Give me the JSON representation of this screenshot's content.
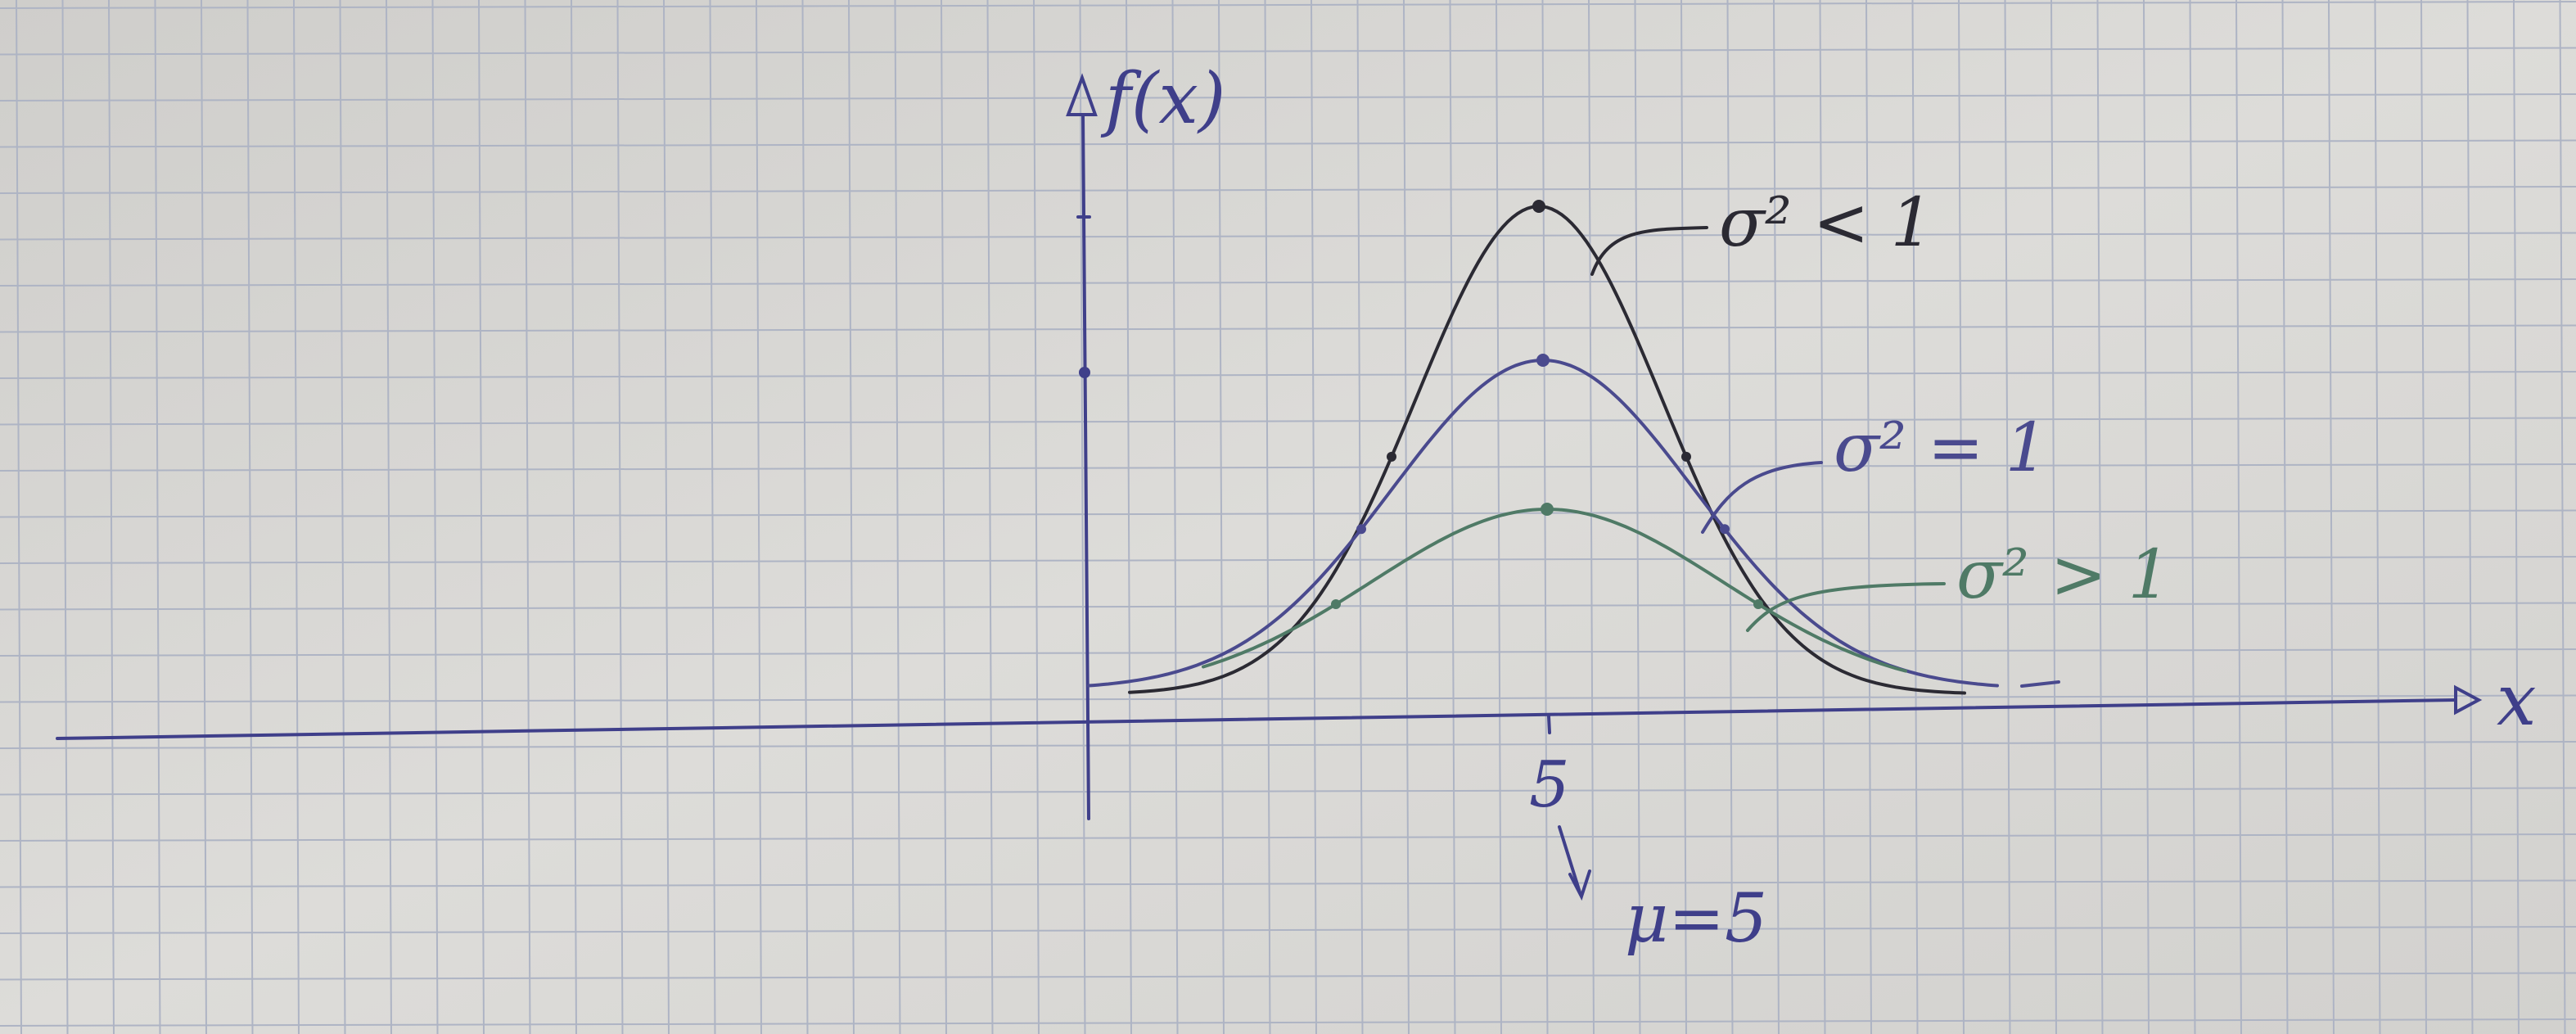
{
  "axes": {
    "y_label": "f(x)",
    "x_label": "x",
    "tick_label": "5",
    "mean_note": "μ=5"
  },
  "curves": [
    {
      "label": "σ² < 1",
      "mean": 5,
      "color": "#2b2a33"
    },
    {
      "label": "σ² = 1",
      "mean": 5,
      "color": "#4a4a8e"
    },
    {
      "label": "σ² > 1",
      "mean": 5,
      "color": "#4f7a66"
    }
  ],
  "colors": {
    "paper": "#d6d5d2",
    "grid": "#aeb4c4",
    "axis_ink": "#3f3f8a"
  }
}
